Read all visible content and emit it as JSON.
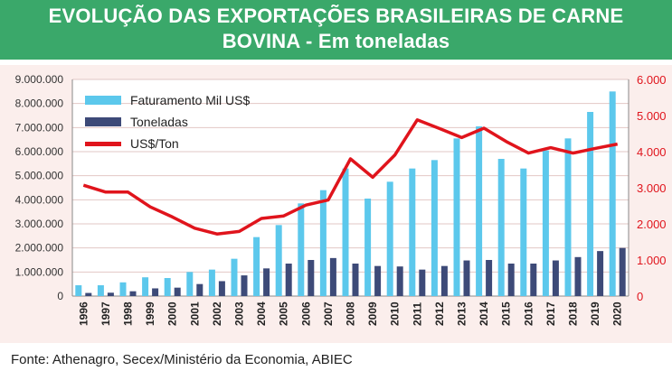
{
  "header": {
    "title_line1": "EVOLUÇÃO DAS EXPORTAÇÕES BRASILEIRAS DE CARNE",
    "title_line2": "BOVINA  - Em toneladas"
  },
  "footer": {
    "source": "Fonte: Athenagro, Secex/Ministério da Economia, ABIEC"
  },
  "colors": {
    "header_bg": "#3aa86a",
    "panel_bg": "#fbeeec",
    "faturamento": "#5cc8ec",
    "toneladas": "#3d4a78",
    "price_line": "#e0141c"
  },
  "chart_data": {
    "type": "bar",
    "categories": [
      "1996",
      "1997",
      "1998",
      "1999",
      "2000",
      "2001",
      "2002",
      "2003",
      "2004",
      "2005",
      "2006",
      "2007",
      "2008",
      "2009",
      "2010",
      "2011",
      "2012",
      "2013",
      "2014",
      "2015",
      "2016",
      "2017",
      "2018",
      "2019",
      "2020"
    ],
    "series": [
      {
        "name": "Faturamento Mil US$",
        "type": "bar",
        "axis": "left",
        "values": [
          450000,
          450000,
          570000,
          780000,
          750000,
          1000000,
          1100000,
          1550000,
          2450000,
          2950000,
          3850000,
          4400000,
          5300000,
          4050000,
          4750000,
          5300000,
          5650000,
          6550000,
          7050000,
          5700000,
          5300000,
          6050000,
          6550000,
          7650000,
          8500000
        ]
      },
      {
        "name": "Toneladas",
        "type": "bar",
        "axis": "left",
        "values": [
          130000,
          140000,
          200000,
          320000,
          350000,
          500000,
          620000,
          860000,
          1150000,
          1350000,
          1500000,
          1580000,
          1350000,
          1250000,
          1230000,
          1100000,
          1250000,
          1480000,
          1500000,
          1350000,
          1350000,
          1480000,
          1620000,
          1870000,
          2000000
        ]
      },
      {
        "name": "US$/Ton",
        "type": "line",
        "axis": "right",
        "values": [
          3070,
          2880,
          2880,
          2470,
          2190,
          1880,
          1720,
          1790,
          2150,
          2220,
          2520,
          2660,
          3800,
          3290,
          3910,
          4880,
          4640,
          4390,
          4650,
          4280,
          3960,
          4110,
          3960,
          4090,
          4210
        ]
      }
    ],
    "y_left": {
      "lim": [
        0,
        9000000
      ],
      "ticks": [
        "0",
        "1.000.000",
        "2.000.000",
        "3.000.000",
        "4.000.000",
        "5.000.000",
        "6.000.000",
        "7.000.000",
        "8.000.000",
        "9.000.000"
      ]
    },
    "y_right": {
      "lim": [
        0,
        6000
      ],
      "ticks": [
        "0",
        "1.000",
        "2.000",
        "3.000",
        "4.000",
        "5.000",
        "6.000"
      ]
    },
    "grid": true,
    "legend": "top-left"
  }
}
